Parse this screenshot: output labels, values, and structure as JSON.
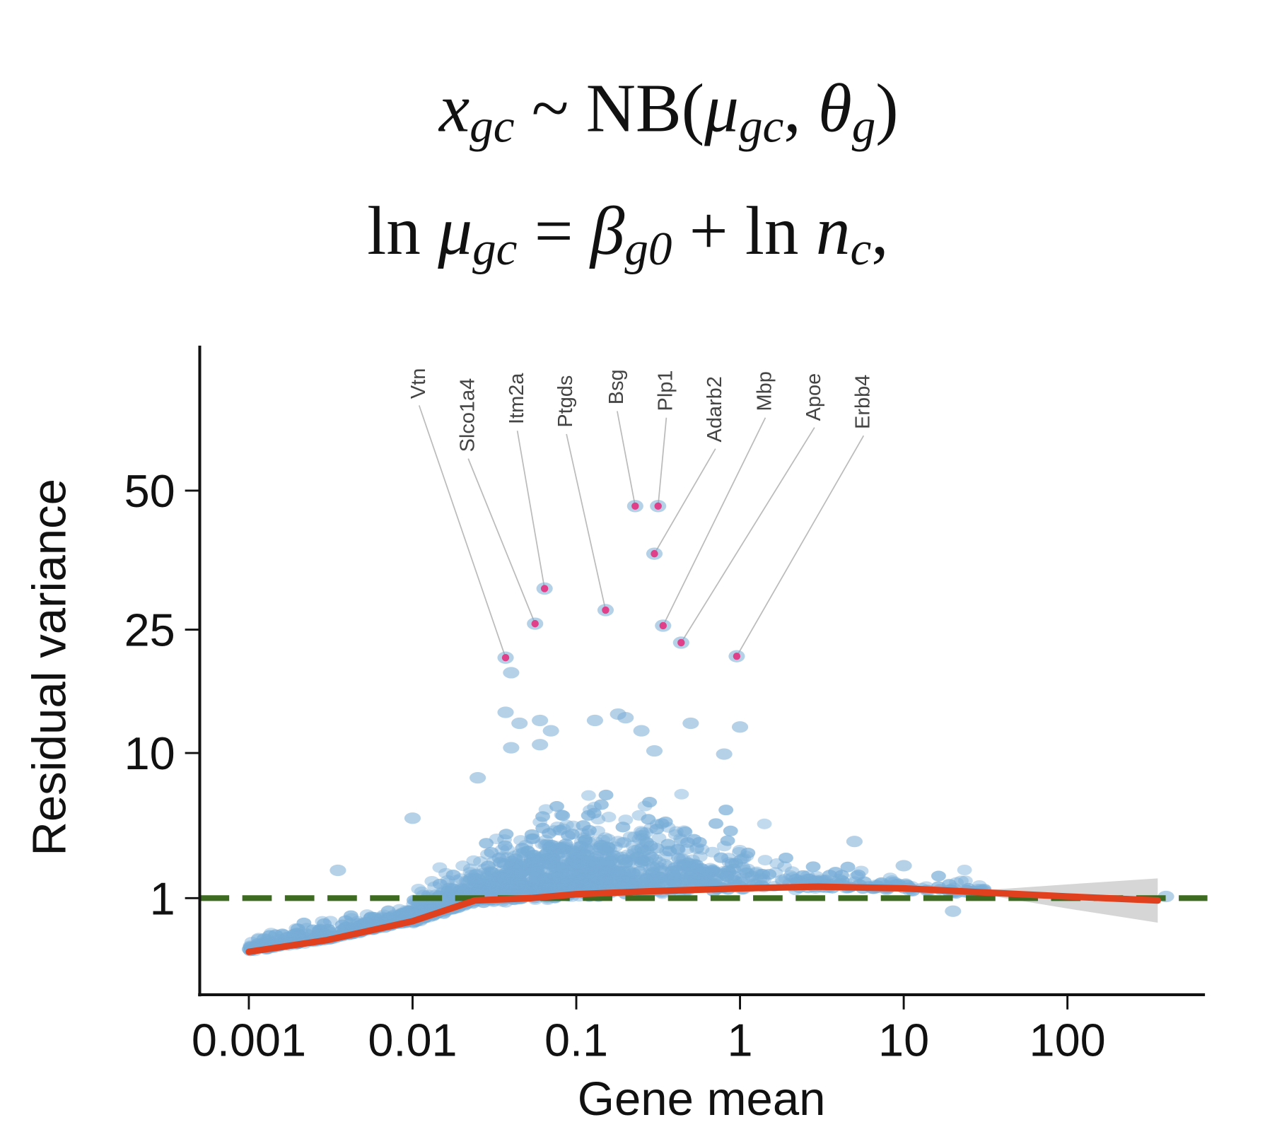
{
  "equations": [
    [
      {
        "t": "x",
        "s": "i"
      },
      {
        "t": "gc",
        "s": "sub"
      },
      {
        "t": " ~ NB(",
        "s": "n"
      },
      {
        "t": "μ",
        "s": "i"
      },
      {
        "t": "gc",
        "s": "sub"
      },
      {
        "t": ", ",
        "s": "n"
      },
      {
        "t": "θ",
        "s": "i"
      },
      {
        "t": "g",
        "s": "sub"
      },
      {
        "t": ")",
        "s": "n"
      }
    ],
    [
      {
        "t": "ln ",
        "s": "n"
      },
      {
        "t": "μ",
        "s": "i"
      },
      {
        "t": "gc",
        "s": "sub"
      },
      {
        "t": " = ",
        "s": "n"
      },
      {
        "t": "β",
        "s": "i"
      },
      {
        "t": "g0",
        "s": "sub"
      },
      {
        "t": " + ln ",
        "s": "n"
      },
      {
        "t": "n",
        "s": "i"
      },
      {
        "t": "c",
        "s": "sub"
      },
      {
        "t": ",",
        "s": "n"
      }
    ]
  ],
  "chart_data": {
    "type": "scatter",
    "title": "",
    "xlabel": "Gene mean",
    "ylabel": "Residual variance",
    "x_scale": "log10",
    "y_scale": "sqrt",
    "xlim": [
      0.00075,
      560
    ],
    "ylim": [
      0,
      85
    ],
    "x_ticks": [
      0.001,
      0.01,
      0.1,
      1,
      10,
      100
    ],
    "x_tick_labels": [
      "0.001",
      "0.01",
      "0.1",
      "1",
      "10",
      "100"
    ],
    "y_ticks": [
      1,
      10,
      25,
      50
    ],
    "y_tick_labels": [
      "1",
      "10",
      "25",
      "50"
    ],
    "grid": false,
    "legend": "none",
    "reference_line": {
      "y": 1,
      "style": "dashed",
      "color": "#3d6b1f"
    },
    "trend": {
      "color": "#e0401e",
      "x": [
        0.001,
        0.003,
        0.01,
        0.024,
        0.053,
        0.1,
        0.3,
        1,
        3,
        10,
        30,
        100,
        356
      ],
      "y": [
        0.04,
        0.14,
        0.43,
        0.93,
        1.0,
        1.12,
        1.22,
        1.31,
        1.37,
        1.31,
        1.18,
        1.05,
        0.93
      ],
      "ribbon_halfwidth_sqrt": [
        0,
        0,
        0,
        0,
        0,
        0,
        0,
        0,
        0,
        0,
        0.03,
        0.18,
        0.33
      ]
    },
    "point_color": "#78acd6",
    "highlight_color": "#e0408a",
    "highlighted_genes": [
      {
        "gene": "Vtn",
        "x": 0.037,
        "y": 21.0
      },
      {
        "gene": "Slco1a4",
        "x": 0.056,
        "y": 25.9
      },
      {
        "gene": "Itm2a",
        "x": 0.064,
        "y": 31.5
      },
      {
        "gene": "Ptgds",
        "x": 0.151,
        "y": 28.0
      },
      {
        "gene": "Bsg",
        "x": 0.229,
        "y": 46.8
      },
      {
        "gene": "Plp1",
        "x": 0.316,
        "y": 46.8
      },
      {
        "gene": "Adarb2",
        "x": 0.3,
        "y": 37.6
      },
      {
        "gene": "Mbp",
        "x": 0.339,
        "y": 25.6
      },
      {
        "gene": "Apoe",
        "x": 0.437,
        "y": 23.1
      },
      {
        "gene": "Erbb4",
        "x": 0.955,
        "y": 21.2
      }
    ],
    "other_notable_points": [
      [
        0.04,
        19.0
      ],
      [
        0.037,
        14.2
      ],
      [
        0.045,
        13.0
      ],
      [
        0.06,
        13.3
      ],
      [
        0.07,
        12.2
      ],
      [
        0.18,
        14.0
      ],
      [
        0.2,
        13.6
      ],
      [
        0.13,
        13.3
      ],
      [
        0.25,
        12.2
      ],
      [
        0.5,
        13.0
      ],
      [
        1.0,
        12.6
      ],
      [
        0.04,
        10.5
      ],
      [
        0.06,
        10.8
      ],
      [
        0.3,
        10.2
      ],
      [
        0.8,
        9.9
      ],
      [
        0.025,
        7.8
      ],
      [
        0.01,
        4.8
      ],
      [
        0.0035,
        2.0
      ],
      [
        5,
        3.4
      ],
      [
        10,
        2.2
      ],
      [
        20,
        0.65
      ],
      [
        400,
        1.05
      ]
    ]
  }
}
